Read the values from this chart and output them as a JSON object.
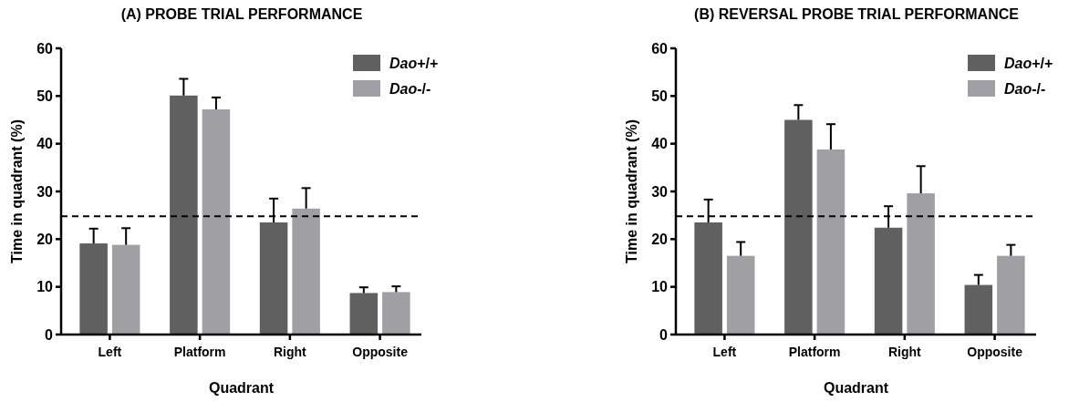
{
  "chart_data": [
    {
      "type": "bar",
      "title": "(A) PROBE TRIAL PERFORMANCE",
      "xlabel": "Quadrant",
      "ylabel": "Time in quadrant (%)",
      "categories": [
        "Left",
        "Platform",
        "Right",
        "Opposite"
      ],
      "series": [
        {
          "name": "Dao+/+",
          "color": "#606060",
          "values": [
            19.1,
            50.1,
            23.5,
            8.7
          ],
          "errors": [
            [
              19.1,
              22.2
            ],
            [
              50.1,
              53.6
            ],
            [
              23.5,
              28.5
            ],
            [
              8.7,
              9.9
            ]
          ]
        },
        {
          "name": "Dao-/-",
          "color": "#a0a0a4",
          "values": [
            18.8,
            47.2,
            26.4,
            8.9
          ],
          "errors": [
            [
              18.8,
              22.3
            ],
            [
              47.2,
              49.7
            ],
            [
              26.4,
              30.7
            ],
            [
              8.9,
              10.1
            ]
          ]
        }
      ],
      "ylim": [
        0,
        60
      ],
      "yticks": [
        0,
        10,
        20,
        30,
        40,
        50,
        60
      ],
      "ref_lines": [
        {
          "axis": "y",
          "value": 24.8,
          "line_style": "dashed",
          "color": "#000000"
        }
      ],
      "legend": "top right",
      "grid": false
    },
    {
      "type": "bar",
      "title": "(B) REVERSAL PROBE TRIAL PERFORMANCE",
      "xlabel": "Quadrant",
      "ylabel": "Time in quadrant (%)",
      "categories": [
        "Left",
        "Platform",
        "Right",
        "Opposite"
      ],
      "series": [
        {
          "name": "Dao+/+",
          "color": "#606060",
          "values": [
            23.5,
            45.0,
            22.4,
            10.4
          ],
          "errors": [
            [
              23.5,
              28.3
            ],
            [
              45.0,
              48.1
            ],
            [
              22.4,
              26.9
            ],
            [
              10.4,
              12.5
            ]
          ]
        },
        {
          "name": "Dao-/-",
          "color": "#a0a0a4",
          "values": [
            16.5,
            38.8,
            29.6,
            16.5
          ],
          "errors": [
            [
              16.5,
              19.4
            ],
            [
              38.8,
              44.1
            ],
            [
              29.6,
              35.3
            ],
            [
              16.5,
              18.8
            ]
          ]
        }
      ],
      "ylim": [
        0,
        60
      ],
      "yticks": [
        0,
        10,
        20,
        30,
        40,
        50,
        60
      ],
      "ref_lines": [
        {
          "axis": "y",
          "value": 24.8,
          "line_style": "dashed",
          "color": "#000000"
        }
      ],
      "legend": "top right",
      "grid": false
    }
  ]
}
